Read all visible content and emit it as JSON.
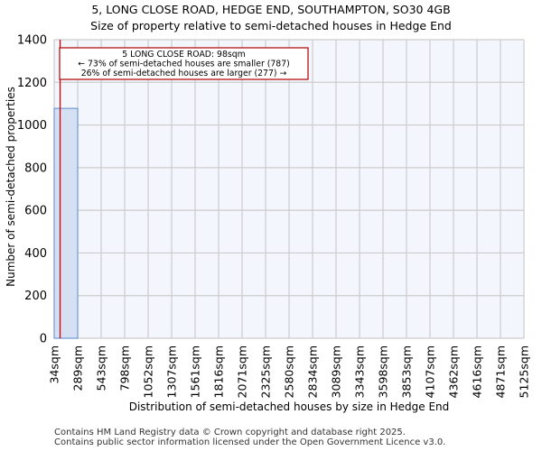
{
  "header": {
    "title": "5, LONG CLOSE ROAD, HEDGE END, SOUTHAMPTON, SO30 4GB",
    "subtitle": "Size of property relative to semi-detached houses in Hedge End"
  },
  "annotation": {
    "line1": "5 LONG CLOSE ROAD: 98sqm",
    "line2": "← 73% of semi-detached houses are smaller (787)",
    "line3": "26% of semi-detached houses are larger (277) →"
  },
  "footer": {
    "line1": "Contains HM Land Registry data © Crown copyright and database right 2025.",
    "line2": "Contains public sector information licensed under the Open Government Licence v3.0."
  },
  "colors": {
    "bar_fill": "#d6e0f3",
    "bar_edge": "#5b8bd0",
    "plot_bg": "#f3f6fd",
    "grid": "#cccccc",
    "marker_line": "#cc0000"
  },
  "chart_data": {
    "type": "bar",
    "title": "5, LONG CLOSE ROAD, HEDGE END, SOUTHAMPTON, SO30 4GB",
    "subtitle": "Size of property relative to semi-detached houses in Hedge End",
    "xlabel": "Distribution of semi-detached houses by size in Hedge End",
    "ylabel": "Number of semi-detached properties",
    "categories": [
      "34sqm",
      "289sqm",
      "543sqm",
      "798sqm",
      "1052sqm",
      "1307sqm",
      "1561sqm",
      "1816sqm",
      "2071sqm",
      "2325sqm",
      "2580sqm",
      "2834sqm",
      "3089sqm",
      "3343sqm",
      "3598sqm",
      "3853sqm",
      "4107sqm",
      "4362sqm",
      "4616sqm",
      "4871sqm",
      "5125sqm"
    ],
    "bin_edges": [
      34,
      289,
      543,
      798,
      1052,
      1307,
      1561,
      1816,
      2071,
      2325,
      2580,
      2834,
      3089,
      3343,
      3598,
      3853,
      4107,
      4362,
      4616,
      4871,
      5125
    ],
    "values": [
      1078,
      0,
      0,
      0,
      0,
      0,
      0,
      0,
      0,
      0,
      0,
      0,
      0,
      0,
      0,
      0,
      0,
      0,
      0,
      0
    ],
    "ylim": [
      0,
      1400
    ],
    "yticks": [
      0,
      200,
      400,
      600,
      800,
      1000,
      1200,
      1400
    ],
    "grid": true,
    "marker": {
      "value": 98,
      "label": "5 LONG CLOSE ROAD: 98sqm"
    },
    "annotations": [
      "5 LONG CLOSE ROAD: 98sqm",
      "← 73% of semi-detached houses are smaller (787)",
      "26% of semi-detached houses are larger (277) →"
    ]
  }
}
